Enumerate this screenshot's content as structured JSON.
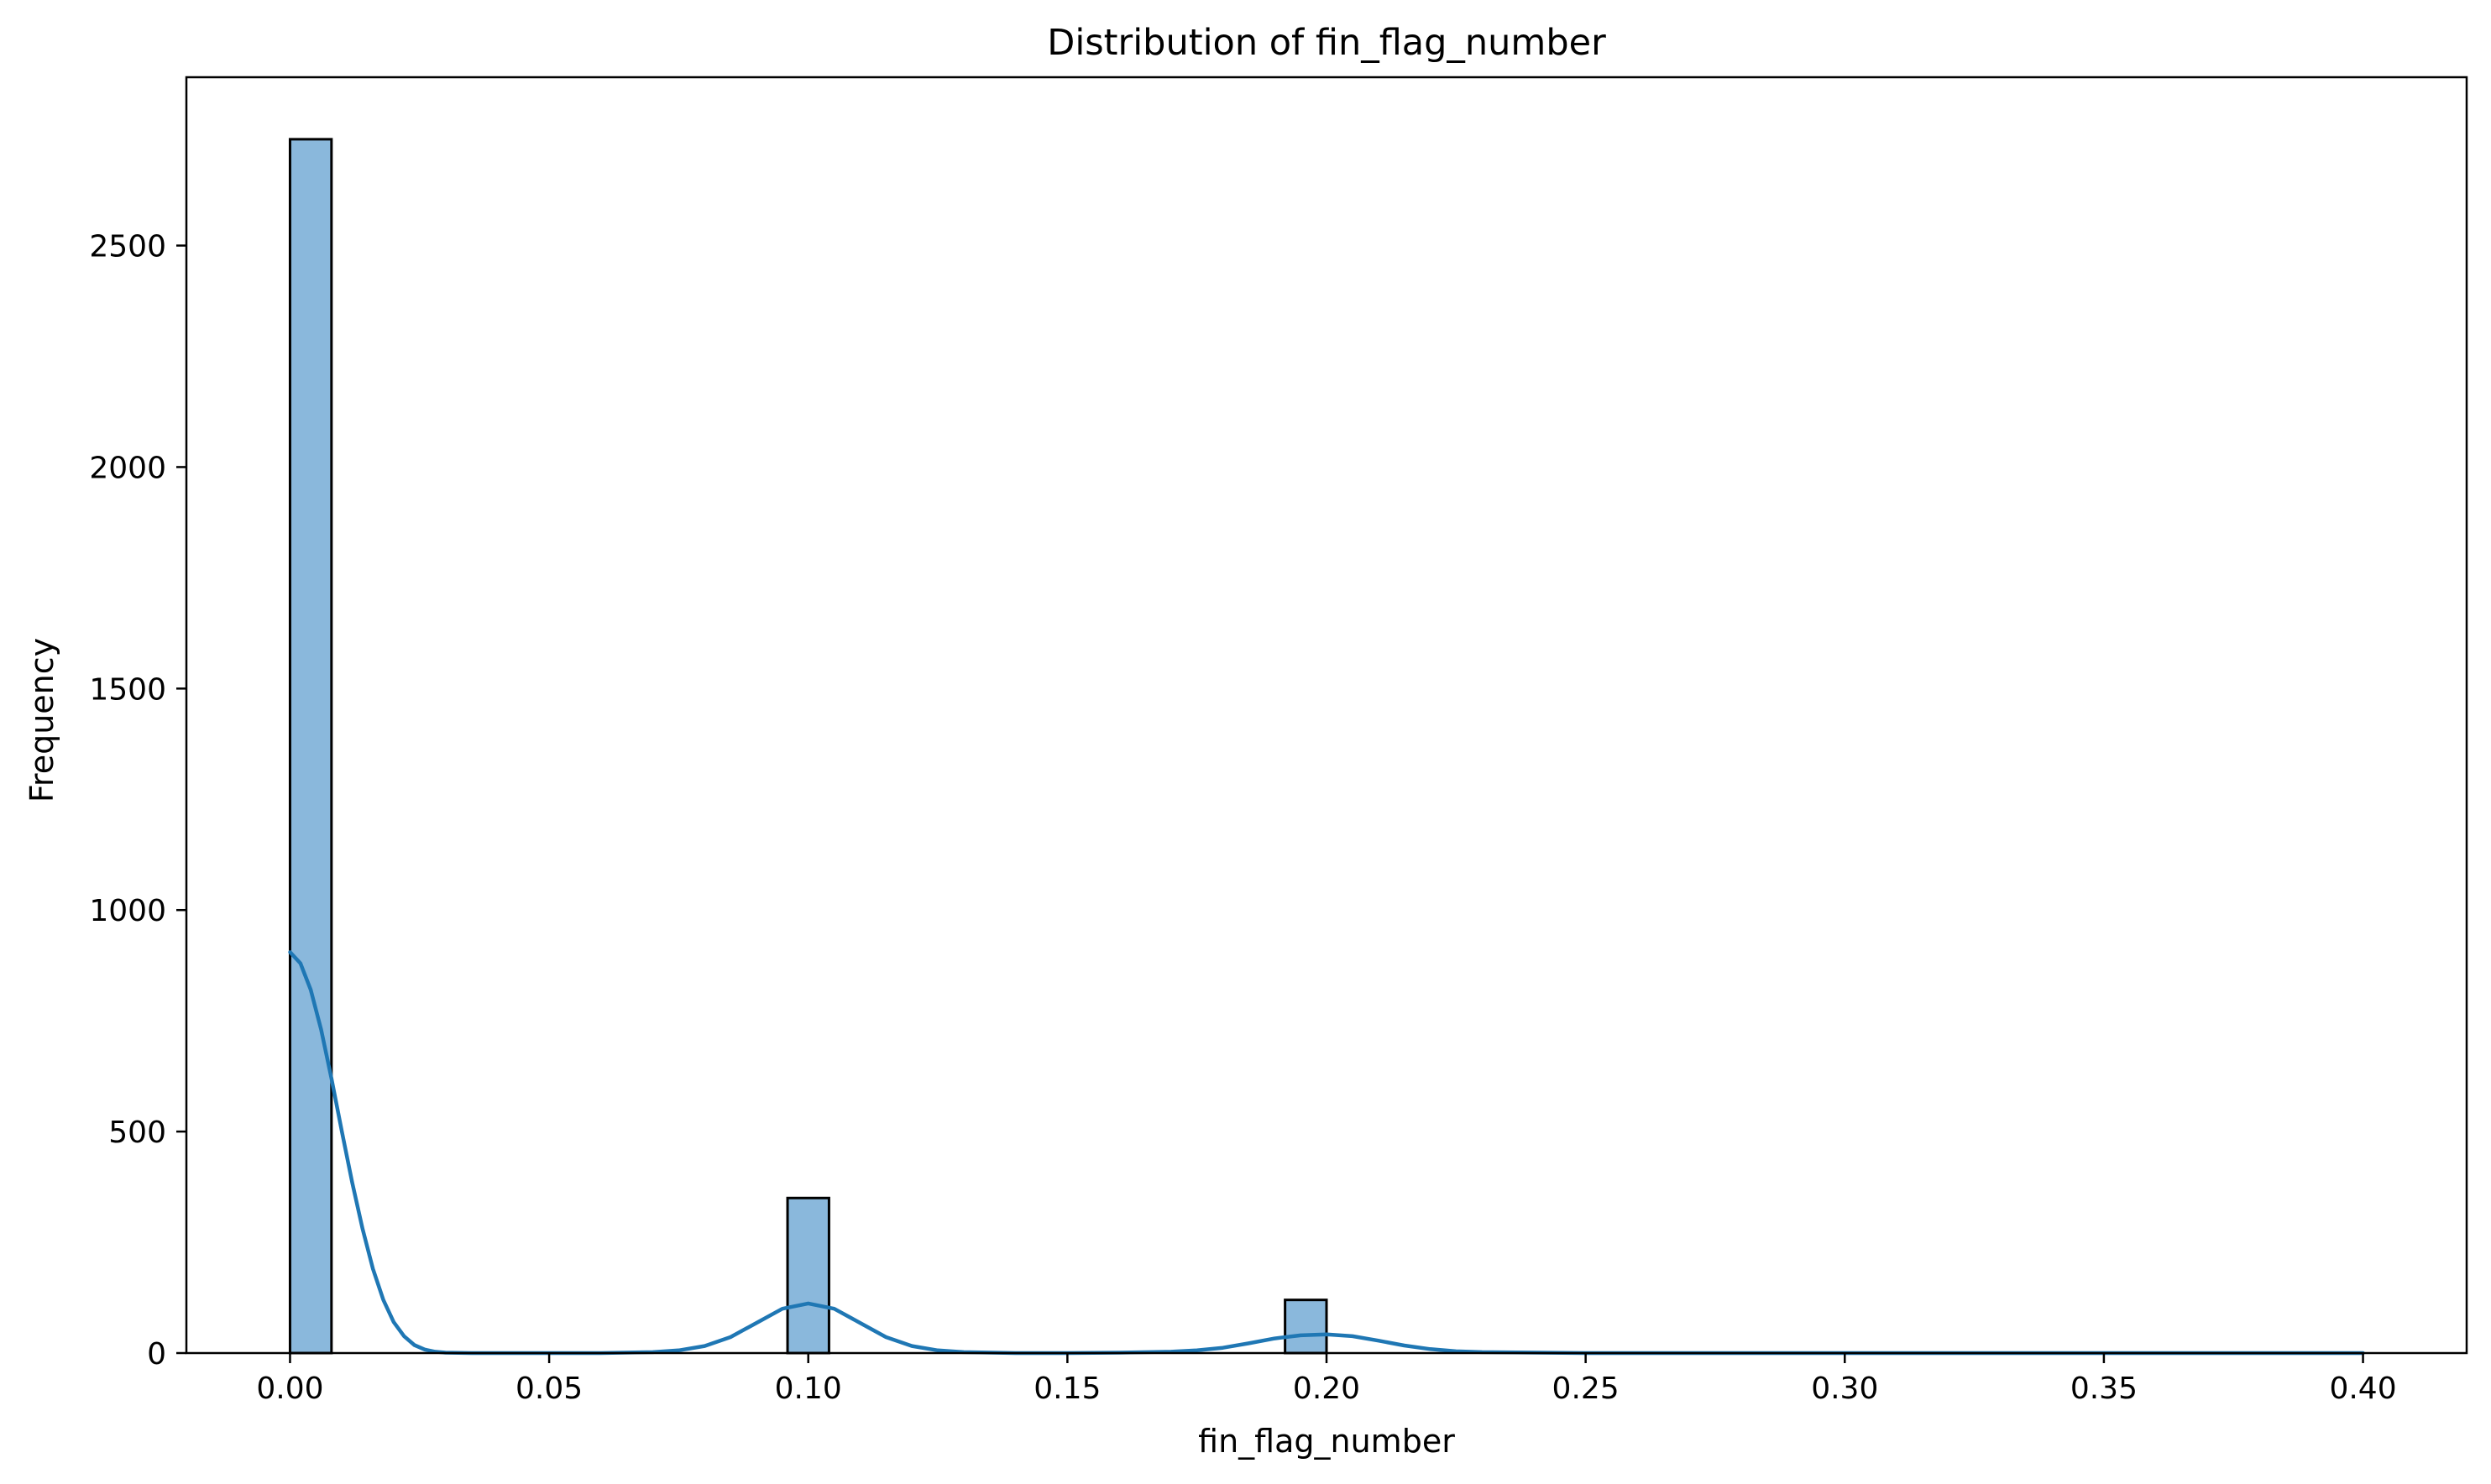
{
  "chart_data": {
    "type": "bar",
    "title": "Distribution of fin_flag_number",
    "xlabel": "fin_flag_number",
    "ylabel": "Frequency",
    "xlim": [
      -0.02,
      0.42
    ],
    "ylim": [
      0,
      2880
    ],
    "xticks": [
      0.0,
      0.05,
      0.1,
      0.15,
      0.2,
      0.25,
      0.3,
      0.35,
      0.4
    ],
    "xtick_labels": [
      "0.00",
      "0.05",
      "0.10",
      "0.15",
      "0.20",
      "0.25",
      "0.30",
      "0.35",
      "0.40"
    ],
    "yticks": [
      0,
      500,
      1000,
      1500,
      2000,
      2500
    ],
    "ytick_labels": [
      "0",
      "500",
      "1000",
      "1500",
      "2000",
      "2500"
    ],
    "bin_width": 0.008,
    "bars": [
      {
        "x_start": 0.0,
        "x_end": 0.008,
        "value": 2740
      },
      {
        "x_start": 0.096,
        "x_end": 0.104,
        "value": 350
      },
      {
        "x_start": 0.192,
        "x_end": 0.2,
        "value": 120
      }
    ],
    "kde": {
      "x": [
        0.0,
        0.002,
        0.004,
        0.006,
        0.008,
        0.01,
        0.012,
        0.014,
        0.016,
        0.018,
        0.02,
        0.022,
        0.024,
        0.026,
        0.028,
        0.03,
        0.035,
        0.04,
        0.05,
        0.06,
        0.07,
        0.075,
        0.08,
        0.085,
        0.09,
        0.095,
        0.1,
        0.105,
        0.11,
        0.115,
        0.12,
        0.125,
        0.13,
        0.14,
        0.15,
        0.16,
        0.17,
        0.175,
        0.18,
        0.185,
        0.19,
        0.195,
        0.2,
        0.205,
        0.21,
        0.215,
        0.22,
        0.225,
        0.23,
        0.25,
        0.3,
        0.35,
        0.4
      ],
      "y": [
        905,
        880,
        820,
        730,
        620,
        500,
        385,
        280,
        190,
        120,
        70,
        38,
        18,
        8,
        3,
        1,
        0,
        0,
        0,
        0,
        2,
        6,
        16,
        36,
        68,
        100,
        112,
        100,
        68,
        36,
        16,
        6,
        2,
        0,
        0,
        1,
        3,
        6,
        12,
        22,
        33,
        40,
        42,
        38,
        28,
        17,
        9,
        4,
        2,
        0,
        0,
        0,
        0
      ]
    },
    "colors": {
      "bar_fill": "#8ab8dc",
      "bar_edge": "#000000",
      "kde_line": "#1f77b4"
    },
    "grid": false,
    "legend": "none"
  }
}
